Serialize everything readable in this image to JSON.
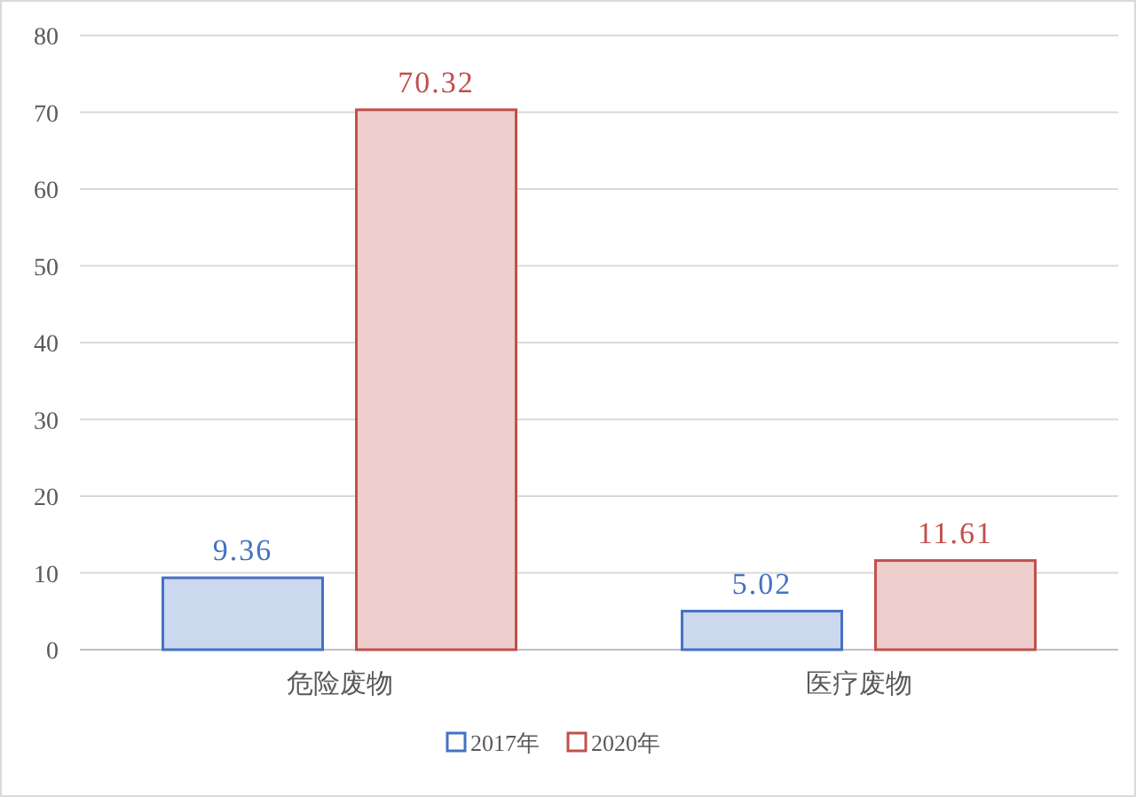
{
  "chart_data": {
    "type": "bar",
    "categories": [
      "危险废物",
      "医疗废物"
    ],
    "series": [
      {
        "name": "2017年",
        "color": "#4472c4",
        "values": [
          9.36,
          5.02
        ]
      },
      {
        "name": "2020年",
        "color": "#c0504d",
        "values": [
          70.32,
          11.61
        ]
      }
    ],
    "ylim": [
      0,
      80
    ],
    "yticks": [
      0,
      10,
      20,
      30,
      40,
      50,
      60,
      70,
      80
    ],
    "grid": "y",
    "legend": "bottom",
    "data_labels": true
  }
}
